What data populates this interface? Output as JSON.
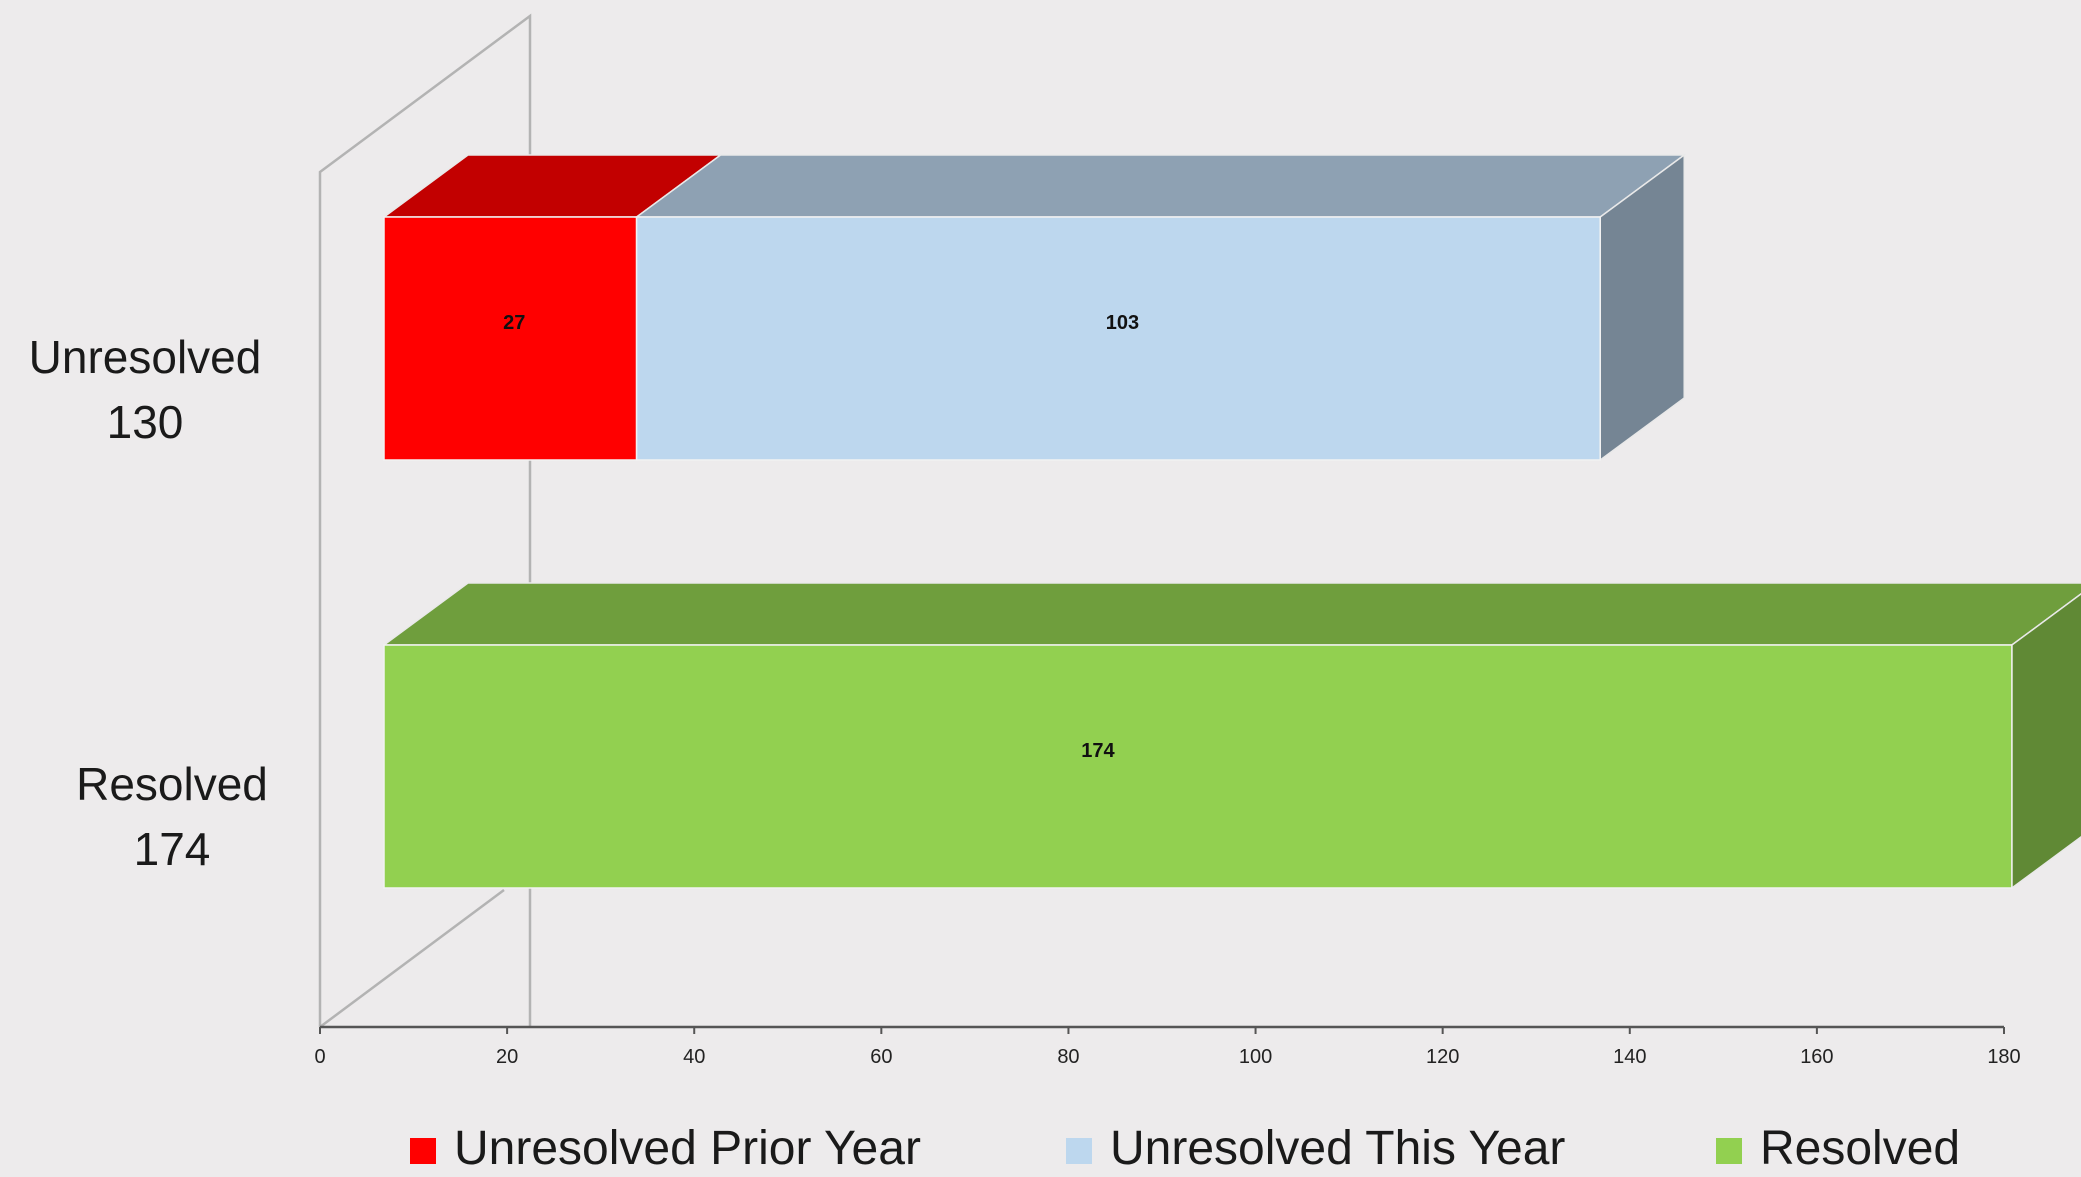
{
  "chart_data": {
    "type": "bar",
    "orientation": "horizontal",
    "stacked": true,
    "style": "3d",
    "categories": [
      "Resolved\n174",
      "Unresolved\n130"
    ],
    "series": [
      {
        "name": "Unresolved Prior Year",
        "color": "#ff0000",
        "values": [
          0,
          27
        ],
        "labels": [
          "",
          "27"
        ]
      },
      {
        "name": "Unresolved This Year",
        "color": "#bdd7ee",
        "values": [
          0,
          103
        ],
        "labels": [
          "",
          "103"
        ]
      },
      {
        "name": "Resolved",
        "color": "#92d050",
        "values": [
          174,
          0
        ],
        "labels": [
          "174",
          ""
        ]
      }
    ],
    "xlim": [
      0,
      180
    ],
    "xticks": [
      "0",
      "20",
      "40",
      "60",
      "80",
      "100",
      "120",
      "140",
      "160",
      "180"
    ],
    "grid": false,
    "legend_position": "bottom"
  }
}
